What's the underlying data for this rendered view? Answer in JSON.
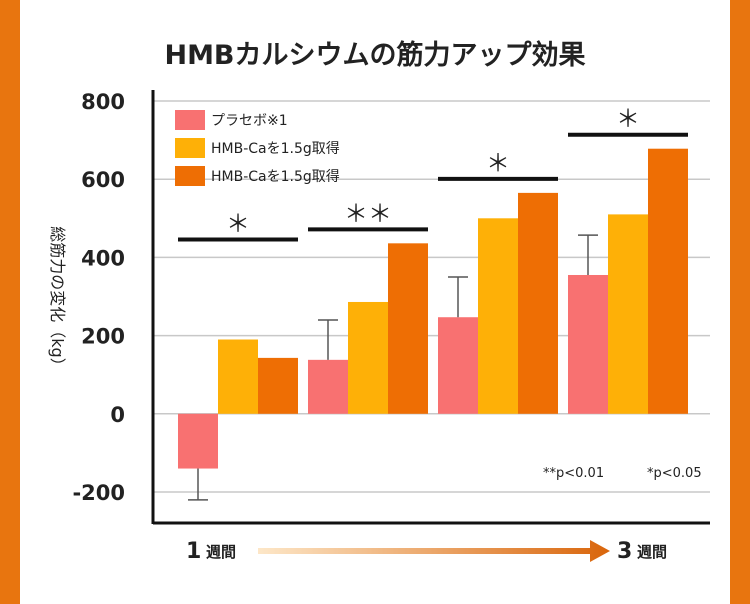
{
  "chart_data": {
    "type": "bar",
    "title": "HMBカルシウムの筋力アップ効果",
    "ylabel": "総筋力の変化（kg）",
    "ylim": [
      -200,
      800
    ],
    "yticks": [
      "800",
      "600",
      "400",
      "200",
      "0",
      "-200"
    ],
    "grid": true,
    "legend_position": "top-left",
    "groups": 4,
    "series": [
      {
        "name": "プラセボ※1",
        "color": "#f87171",
        "values": [
          -140,
          138,
          247,
          355
        ],
        "err_high": [
          -220,
          240,
          350,
          457
        ]
      },
      {
        "name": "HMB-Caを1.5g取得",
        "color": "#feb007",
        "values": [
          190,
          286,
          500,
          510
        ],
        "err_high": [
          null,
          null,
          null,
          null
        ]
      },
      {
        "name": "HMB-Caを1.5g取得",
        "color": "#ee6e04",
        "values": [
          143,
          436,
          565,
          678
        ],
        "err_high": [
          null,
          null,
          null,
          null
        ]
      }
    ],
    "significance": [
      "＊",
      "＊＊",
      "＊",
      "＊"
    ],
    "notes": [
      "**p<0.01",
      "*p<0.05"
    ],
    "x_start_label": {
      "num": "1",
      "unit": "週間"
    },
    "x_end_label": {
      "num": "3",
      "unit": "週間"
    }
  }
}
